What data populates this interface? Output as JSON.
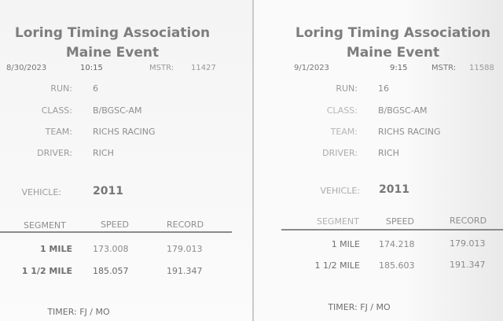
{
  "slips": [
    {
      "title": "Loring Timing Association",
      "event": "Maine Event",
      "date": "8/30/2023",
      "time": "10:15",
      "mstr_label": "MSTR:",
      "mstr": "11427",
      "run_label": "RUN:",
      "run": "6",
      "class_label": "CLASS:",
      "class": "B/BGSC-AM",
      "team_label": "TEAM:",
      "team": "RICHS RACING",
      "driver_label": "DRIVER:",
      "driver": "RICH",
      "vehicle_label": "VEHICLE:",
      "vehicle": "2011",
      "columns": [
        "SEGMENT",
        "SPEED",
        "RECORD"
      ],
      "rows": [
        {
          "segment": "1 MILE",
          "speed": "173.008",
          "record": "179.013"
        },
        {
          "segment": "1 1/2 MILE",
          "speed": "185.057",
          "record": "191.347"
        }
      ],
      "timer": "TIMER: FJ / MO"
    },
    {
      "title": "Loring Timing Association",
      "event": "Maine Event",
      "date": "9/1/2023",
      "time": "9:15",
      "mstr_label": "MSTR:",
      "mstr": "11588",
      "run_label": "RUN:",
      "run": "16",
      "class_label": "CLASS:",
      "class": "B/BGSC-AM",
      "team_label": "TEAM:",
      "team": "RICHS RACING",
      "driver_label": "DRIVER:",
      "driver": "RICH",
      "vehicle_label": "VEHICLE:",
      "vehicle": "2011",
      "columns": [
        "SEGMENT",
        "SPEED",
        "RECORD"
      ],
      "rows": [
        {
          "segment": "1 MILE",
          "speed": "174.218",
          "record": "179.013"
        },
        {
          "segment": "1 1/2 MILE",
          "speed": "185.603",
          "record": "191.347"
        }
      ],
      "timer": "TIMER: FJ / MO"
    }
  ]
}
